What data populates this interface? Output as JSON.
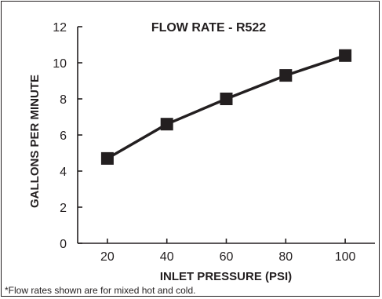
{
  "chart_data": {
    "type": "line",
    "title": "FLOW RATE - R522",
    "xlabel": "INLET PRESSURE (PSI)",
    "ylabel": "GALLONS PER MINUTE",
    "x": [
      20,
      40,
      60,
      80,
      100
    ],
    "xticks": [
      "20",
      "40",
      "60",
      "80",
      "100"
    ],
    "yticks": [
      "0",
      "2",
      "4",
      "6",
      "8",
      "10",
      "12"
    ],
    "xlim": [
      10,
      110
    ],
    "ylim": [
      0,
      12
    ],
    "grid": false,
    "series": [
      {
        "values": [
          4.7,
          6.6,
          8.0,
          9.3,
          10.4
        ]
      }
    ],
    "marker": "square",
    "line_color": "#231f20",
    "footnote": "*Flow rates shown are for mixed hot and cold."
  }
}
